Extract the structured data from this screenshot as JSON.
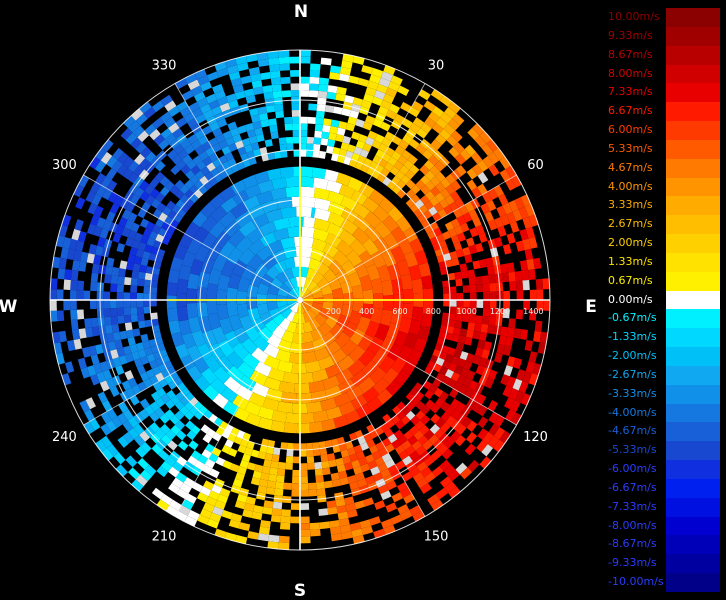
{
  "chart_data": {
    "type": "heatmap",
    "subtype": "polar-radar-velocity",
    "title": "",
    "compass": {
      "north": "N",
      "east": "E",
      "south": "S",
      "west": "W"
    },
    "azimuth_labels": [
      "30",
      "60",
      "120",
      "150",
      "210",
      "240",
      "300",
      "330"
    ],
    "range_labels": [
      "200",
      "400",
      "600",
      "800",
      "1000",
      "1200",
      "1400"
    ],
    "range_max": 1500,
    "range_rings": [
      300,
      600,
      900,
      1200,
      1500
    ],
    "inner_structure": {
      "center_disc_max_range": 790,
      "gap_range": [
        790,
        860
      ],
      "description_values": "negative velocities to the west/northwest, positive velocities to the east/southeast"
    },
    "colorbar": {
      "unit": "m/s",
      "entries": [
        {
          "label": "10.00m/s",
          "value": 10.0,
          "color": "#8b0000"
        },
        {
          "label": "9.33m/s",
          "value": 9.33,
          "color": "#a00000"
        },
        {
          "label": "8.67m/s",
          "value": 8.67,
          "color": "#b80000"
        },
        {
          "label": "8.00m/s",
          "value": 8.0,
          "color": "#d00000"
        },
        {
          "label": "7.33m/s",
          "value": 7.33,
          "color": "#e80000"
        },
        {
          "label": "6.67m/s",
          "value": 6.67,
          "color": "#ff1a00"
        },
        {
          "label": "6.00m/s",
          "value": 6.0,
          "color": "#ff3a00"
        },
        {
          "label": "5.33m/s",
          "value": 5.33,
          "color": "#ff5a00"
        },
        {
          "label": "4.67m/s",
          "value": 4.67,
          "color": "#ff7a00"
        },
        {
          "label": "4.00m/s",
          "value": 4.0,
          "color": "#ff9400"
        },
        {
          "label": "3.33m/s",
          "value": 3.33,
          "color": "#ffab00"
        },
        {
          "label": "2.67m/s",
          "value": 2.67,
          "color": "#ffbe00"
        },
        {
          "label": "2.00m/s",
          "value": 2.0,
          "color": "#ffd000"
        },
        {
          "label": "1.33m/s",
          "value": 1.33,
          "color": "#ffe200"
        },
        {
          "label": "0.67m/s",
          "value": 0.67,
          "color": "#fff000"
        },
        {
          "label": "0.00m/s",
          "value": 0.0,
          "color": "#ffffff"
        },
        {
          "label": "-0.67m/s",
          "value": -0.67,
          "color": "#00f0ff"
        },
        {
          "label": "-1.33m/s",
          "value": -1.33,
          "color": "#00d8ff"
        },
        {
          "label": "-2.00m/s",
          "value": -2.0,
          "color": "#00c0f8"
        },
        {
          "label": "-2.67m/s",
          "value": -2.67,
          "color": "#10a8f0"
        },
        {
          "label": "-3.33m/s",
          "value": -3.33,
          "color": "#1090e8"
        },
        {
          "label": "-4.00m/s",
          "value": -4.0,
          "color": "#1478e0"
        },
        {
          "label": "-4.67m/s",
          "value": -4.67,
          "color": "#1860d8"
        },
        {
          "label": "-5.33m/s",
          "value": -5.33,
          "color": "#1848d0"
        },
        {
          "label": "-6.00m/s",
          "value": -6.0,
          "color": "#1030e0"
        },
        {
          "label": "-6.67m/s",
          "value": -6.67,
          "color": "#0020f0"
        },
        {
          "label": "-7.33m/s",
          "value": -7.33,
          "color": "#0010e0"
        },
        {
          "label": "-8.00m/s",
          "value": -8.0,
          "color": "#0000d0"
        },
        {
          "label": "-8.67m/s",
          "value": -8.67,
          "color": "#0000b8"
        },
        {
          "label": "-9.33m/s",
          "value": -9.33,
          "color": "#0000a0"
        },
        {
          "label": "-10.00m/s",
          "value": -10.0,
          "color": "#000088"
        }
      ]
    }
  }
}
